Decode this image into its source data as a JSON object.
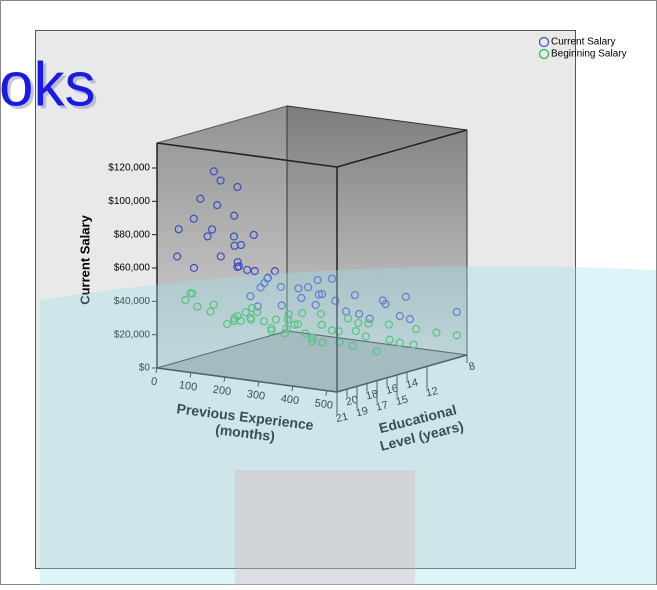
{
  "watermark": "oks",
  "chart_data": {
    "type": "scatter3d",
    "y_label": "Current Salary",
    "x_label": [
      "Previous Experience",
      "(months)"
    ],
    "z_label": [
      "Educational",
      "Level (years)"
    ],
    "xlim": [
      0,
      530
    ],
    "xticks": [
      0,
      100,
      200,
      300,
      400,
      500
    ],
    "zlim": [
      21,
      8
    ],
    "zticks": [
      21,
      20,
      19,
      18,
      17,
      16,
      15,
      14,
      12,
      8
    ],
    "ylim": [
      0,
      135000
    ],
    "yticks": [
      {
        "value": 0,
        "label": "$0"
      },
      {
        "value": 20000,
        "label": "$20,000"
      },
      {
        "value": 40000,
        "label": "$40,000"
      },
      {
        "value": 60000,
        "label": "$60,000"
      },
      {
        "value": 80000,
        "label": "$80,000"
      },
      {
        "value": 100000,
        "label": "$100,000"
      },
      {
        "value": 120000,
        "label": "$120,000"
      }
    ],
    "legend": "top-right",
    "series": [
      {
        "name": "Current Salary",
        "color": "#3c4fc0",
        "x": [
          20,
          40,
          10,
          60,
          30,
          80,
          5,
          15,
          50,
          100,
          20,
          120,
          200,
          35,
          150,
          250,
          300,
          60,
          180,
          400,
          90,
          120,
          350,
          450,
          10,
          220,
          280,
          320,
          50,
          70,
          140,
          30,
          260,
          380,
          420,
          480,
          500,
          200,
          160,
          100,
          40,
          240,
          330,
          60,
          110,
          20,
          90,
          170,
          30,
          290
        ],
        "z": [
          16,
          16,
          17,
          15,
          16,
          16,
          19,
          16,
          15,
          16,
          12,
          17,
          16,
          14,
          15,
          12,
          15,
          12,
          12,
          12,
          8,
          15,
          8,
          12,
          12,
          16,
          14,
          16,
          19,
          17,
          18,
          20,
          12,
          15,
          14,
          12,
          8,
          8,
          12,
          12,
          12,
          15,
          12,
          15,
          14,
          18,
          19,
          17,
          13,
          8
        ],
        "y": [
          110000,
          105000,
          95000,
          100000,
          90000,
          85000,
          80000,
          75000,
          70000,
          68000,
          65000,
          60000,
          55000,
          50000,
          48000,
          45000,
          42000,
          40000,
          38000,
          36000,
          33000,
          30000,
          30000,
          28000,
          28000,
          35000,
          40000,
          38000,
          58000,
          62000,
          72000,
          66000,
          32000,
          34000,
          29000,
          27000,
          25000,
          27000,
          31000,
          36000,
          34000,
          44000,
          26000,
          52000,
          42000,
          85000,
          78000,
          56000,
          46000,
          24000
        ]
      },
      {
        "name": "Beginning Salary",
        "color": "#33b54a",
        "x": [
          10,
          30,
          50,
          80,
          100,
          150,
          200,
          250,
          300,
          350,
          400,
          450,
          500,
          20,
          40,
          60,
          10,
          90,
          120,
          180,
          220,
          280,
          320,
          380,
          420,
          470,
          30,
          70,
          130,
          160,
          240,
          260,
          340,
          5,
          15,
          55,
          75,
          25,
          110,
          140,
          190,
          210,
          360,
          440,
          490,
          270,
          310,
          85,
          45,
          175
        ],
        "z": [
          12,
          15,
          12,
          16,
          8,
          12,
          15,
          12,
          8,
          12,
          15,
          12,
          8,
          16,
          17,
          19,
          18,
          16,
          12,
          8,
          12,
          15,
          12,
          8,
          12,
          15,
          12,
          15,
          16,
          15,
          8,
          15,
          16,
          8,
          12,
          14,
          20,
          19,
          17,
          12,
          16,
          8,
          15,
          8,
          12,
          12,
          16,
          12,
          8,
          14
        ],
        "y": [
          15000,
          17000,
          14000,
          22000,
          13000,
          15000,
          16000,
          14000,
          12000,
          13000,
          14000,
          12000,
          11000,
          30000,
          28000,
          35000,
          40000,
          25000,
          17000,
          12500,
          16500,
          13500,
          15500,
          11500,
          13000,
          12500,
          19000,
          20000,
          24000,
          18000,
          11000,
          17500,
          16000,
          10000,
          21000,
          23000,
          45000,
          38000,
          26000,
          14500,
          19000,
          10500,
          15000,
          11000,
          12000,
          14000,
          18000,
          16000,
          12000,
          16500
        ]
      }
    ]
  }
}
